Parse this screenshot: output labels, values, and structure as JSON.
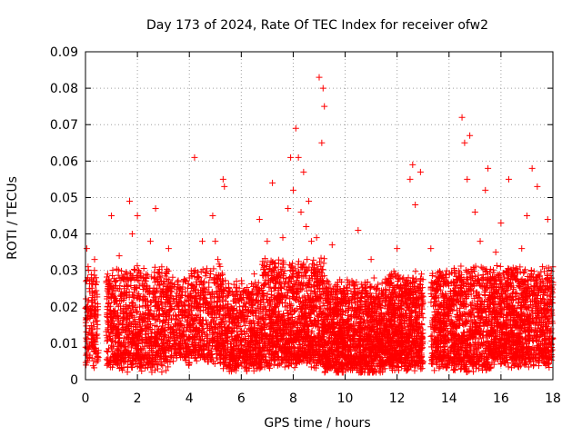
{
  "chart_data": {
    "type": "scatter",
    "title": "Day 173 of 2024, Rate Of TEC Index for receiver ofw2",
    "xlabel": "GPS time / hours",
    "ylabel": "ROTI / TECUs",
    "xlim": [
      0,
      18
    ],
    "ylim": [
      0,
      0.09
    ],
    "xticks": [
      "0",
      "2",
      "4",
      "6",
      "8",
      "10",
      "12",
      "14",
      "16",
      "18"
    ],
    "yticks": [
      "0",
      "0.01",
      "0.02",
      "0.03",
      "0.04",
      "0.05",
      "0.06",
      "0.07",
      "0.08",
      "0.09"
    ],
    "grid": true,
    "marker": "+",
    "color": "#ff0000",
    "series": [
      {
        "name": "ROTI",
        "x": [
          0.05,
          0.1,
          0.15,
          0.2,
          0.25,
          0.3,
          0.35,
          0.4,
          0.45,
          0.5,
          0.9,
          1.0,
          1.05,
          1.1,
          1.2,
          1.3,
          1.5,
          1.7,
          1.8,
          1.9,
          2.0,
          2.2,
          2.5,
          2.7,
          2.9,
          3.2,
          3.5,
          3.8,
          4.0,
          4.2,
          4.3,
          4.5,
          4.7,
          4.9,
          5.0,
          5.1,
          5.2,
          5.3,
          5.35,
          5.5,
          5.7,
          6.0,
          6.3,
          6.5,
          6.7,
          7.0,
          7.2,
          7.4,
          7.6,
          7.8,
          7.9,
          8.0,
          8.1,
          8.2,
          8.3,
          8.4,
          8.5,
          8.6,
          8.7,
          8.8,
          8.9,
          9.0,
          9.1,
          9.15,
          9.2,
          9.3,
          9.5,
          9.7,
          9.9,
          10.1,
          10.3,
          10.5,
          10.7,
          10.9,
          11.0,
          11.2,
          11.5,
          11.8,
          12.0,
          12.3,
          12.5,
          12.6,
          12.7,
          12.9,
          13.0,
          13.3,
          13.6,
          13.9,
          14.2,
          14.5,
          14.6,
          14.7,
          14.8,
          15.0,
          15.2,
          15.4,
          15.5,
          15.6,
          15.8,
          16.0,
          16.3,
          16.5,
          16.8,
          17.0,
          17.2,
          17.4,
          17.6,
          17.8,
          18.0
        ],
        "y": [
          0.036,
          0.031,
          0.025,
          0.018,
          0.013,
          0.009,
          0.033,
          0.028,
          0.014,
          0.008,
          0.021,
          0.045,
          0.03,
          0.018,
          0.012,
          0.034,
          0.025,
          0.049,
          0.04,
          0.03,
          0.045,
          0.018,
          0.038,
          0.047,
          0.013,
          0.036,
          0.021,
          0.012,
          0.015,
          0.061,
          0.028,
          0.038,
          0.024,
          0.045,
          0.038,
          0.033,
          0.02,
          0.055,
          0.053,
          0.004,
          0.018,
          0.022,
          0.014,
          0.029,
          0.044,
          0.038,
          0.054,
          0.021,
          0.039,
          0.047,
          0.061,
          0.052,
          0.069,
          0.061,
          0.046,
          0.057,
          0.042,
          0.049,
          0.038,
          0.029,
          0.039,
          0.083,
          0.065,
          0.08,
          0.075,
          0.025,
          0.037,
          0.022,
          0.015,
          0.009,
          0.012,
          0.041,
          0.018,
          0.022,
          0.033,
          0.011,
          0.014,
          0.008,
          0.036,
          0.024,
          0.055,
          0.059,
          0.048,
          0.057,
          0.021,
          0.036,
          0.011,
          0.028,
          0.012,
          0.072,
          0.065,
          0.055,
          0.067,
          0.046,
          0.038,
          0.052,
          0.058,
          0.021,
          0.035,
          0.043,
          0.055,
          0.028,
          0.036,
          0.045,
          0.058,
          0.053,
          0.031,
          0.044,
          0.026
        ],
        "clusters": [
          {
            "x_start": 0.0,
            "x_end": 0.5,
            "y_low": 0.005,
            "y_high": 0.03,
            "count": 150
          },
          {
            "x_start": 0.8,
            "x_end": 3.2,
            "y_low": 0.004,
            "y_high": 0.03,
            "count": 900
          },
          {
            "x_start": 3.2,
            "x_end": 4.0,
            "y_low": 0.005,
            "y_high": 0.027,
            "count": 250
          },
          {
            "x_start": 4.0,
            "x_end": 5.3,
            "y_low": 0.006,
            "y_high": 0.03,
            "count": 450
          },
          {
            "x_start": 5.3,
            "x_end": 6.8,
            "y_low": 0.004,
            "y_high": 0.026,
            "count": 600
          },
          {
            "x_start": 6.8,
            "x_end": 9.2,
            "y_low": 0.005,
            "y_high": 0.032,
            "count": 1100
          },
          {
            "x_start": 9.2,
            "x_end": 11.5,
            "y_low": 0.003,
            "y_high": 0.026,
            "count": 1200
          },
          {
            "x_start": 11.5,
            "x_end": 13.0,
            "y_low": 0.004,
            "y_high": 0.028,
            "count": 800
          },
          {
            "x_start": 13.3,
            "x_end": 15.7,
            "y_low": 0.004,
            "y_high": 0.03,
            "count": 1100
          },
          {
            "x_start": 15.7,
            "x_end": 18.0,
            "y_low": 0.005,
            "y_high": 0.03,
            "count": 1100
          }
        ]
      }
    ]
  }
}
